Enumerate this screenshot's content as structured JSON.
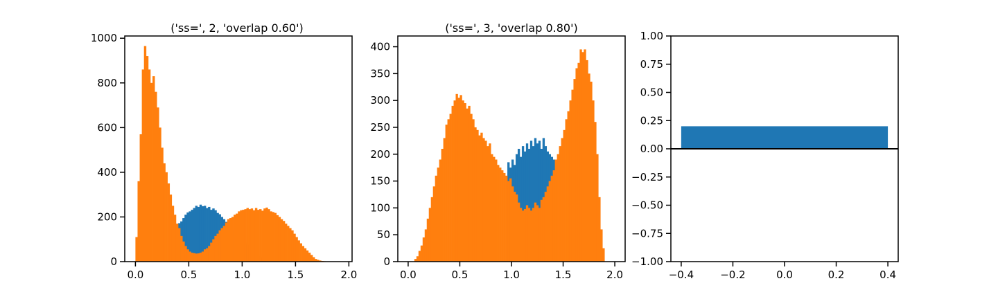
{
  "colors": {
    "blue": "#1f77b4",
    "orange": "#ff7f0e",
    "axis": "#000000",
    "background": "#ffffff"
  },
  "chart_data": [
    {
      "type": "bar",
      "subtype": "overlaid-histogram",
      "title": "('ss=', 2, 'overlap 0.60')",
      "xlim": [
        -0.1,
        2.03
      ],
      "ylim": [
        0,
        1010
      ],
      "xticks": [
        0.0,
        0.5,
        1.0,
        1.5,
        2.0
      ],
      "xtick_labels": [
        "0.0",
        "0.5",
        "1.0",
        "1.5",
        "2.0"
      ],
      "yticks": [
        0,
        200,
        400,
        600,
        800,
        1000
      ],
      "ytick_labels": [
        "0",
        "200",
        "400",
        "600",
        "800",
        "1000"
      ],
      "bin_width": 0.02,
      "grid": false,
      "series": [
        {
          "color_key": "blue",
          "bins": [
            {
              "x0": 0.34,
              "values": [
                125,
                150,
                165,
                172,
                180,
                195,
                210,
                220,
                225,
                232,
                240,
                250,
                245,
                255,
                248,
                250,
                240,
                245,
                232,
                238,
                230,
                218,
                212,
                200,
                190,
                178,
                168,
                155,
                145,
                135,
                125,
                115,
                105,
                95,
                85,
                75,
                65,
                55,
                45,
                35,
                25,
                18
              ]
            }
          ]
        },
        {
          "color_key": "orange",
          "bins": [
            {
              "x0": 0.0,
              "values": [
                110,
                360,
                570,
                860,
                965,
                920,
                860,
                800,
                830,
                760,
                690,
                600,
                510,
                440,
                400,
                350,
                300,
                250,
                210,
                170,
                150,
                115,
                90,
                70,
                55,
                45,
                40,
                38,
                36,
                37,
                40,
                45,
                55,
                60,
                70,
                85,
                100,
                115,
                125,
                140,
                150,
                160,
                175,
                190,
                195,
                200,
                210,
                215,
                225,
                230,
                232,
                235,
                240,
                235,
                238,
                230,
                240,
                232,
                235,
                228,
                238,
                242,
                235,
                225,
                222,
                218,
                208,
                200,
                190,
                182,
                170,
                160,
                150,
                140,
                125,
                110,
                95,
                82,
                70,
                60,
                50,
                40,
                30,
                20,
                12,
                8,
                5,
                3,
                2,
                1,
                1,
                1
              ]
            }
          ]
        }
      ]
    },
    {
      "type": "bar",
      "subtype": "overlaid-histogram",
      "title": "('ss=', 3, 'overlap 0.80')",
      "xlim": [
        -0.1,
        2.1
      ],
      "ylim": [
        0,
        420
      ],
      "xticks": [
        0.0,
        0.5,
        1.0,
        1.5,
        2.0
      ],
      "xtick_labels": [
        "0.0",
        "0.5",
        "1.0",
        "1.5",
        "2.0"
      ],
      "yticks": [
        0,
        50,
        100,
        150,
        200,
        250,
        300,
        350,
        400
      ],
      "ytick_labels": [
        "0",
        "50",
        "100",
        "150",
        "200",
        "250",
        "300",
        "350",
        "400"
      ],
      "bin_width": 0.02,
      "grid": false,
      "series": [
        {
          "color_key": "blue",
          "bins": [
            {
              "x0": 0.96,
              "values": [
                185,
                175,
                190,
                180,
                200,
                210,
                195,
                215,
                205,
                220,
                210,
                225,
                215,
                230,
                220,
                225,
                210,
                230,
                215,
                205,
                200,
                195,
                190,
                185
              ]
            }
          ]
        },
        {
          "color_key": "orange",
          "bins": [
            {
              "x0": 0.06,
              "values": [
                5,
                10,
                20,
                30,
                45,
                60,
                80,
                100,
                120,
                140,
                160,
                175,
                190,
                210,
                230,
                255,
                265,
                275,
                290,
                300,
                312,
                305,
                310,
                300,
                295,
                285,
                290,
                275,
                265,
                250,
                245,
                235,
                240,
                230,
                225,
                215,
                220,
                200,
                195,
                190,
                180,
                175,
                170,
                165,
                160,
                150,
                155,
                140,
                130,
                125,
                110,
                100,
                95,
                98,
                105,
                100,
                95,
                100,
                110,
                105,
                100,
                115,
                120,
                130,
                140,
                150,
                160,
                170,
                190,
                200,
                215,
                230,
                245,
                265,
                280,
                300,
                320,
                340,
                360,
                370,
                395,
                390,
                395,
                375,
                350,
                335,
                300,
                260,
                200,
                120,
                60,
                25
              ]
            }
          ]
        }
      ]
    },
    {
      "type": "bar",
      "title": "",
      "xlim": [
        -0.44,
        0.44
      ],
      "ylim": [
        -1.0,
        1.0
      ],
      "xticks": [
        -0.4,
        -0.2,
        0.0,
        0.2,
        0.4
      ],
      "xtick_labels": [
        "−0.4",
        "−0.2",
        "0.0",
        "0.2",
        "0.4"
      ],
      "yticks": [
        -1.0,
        -0.75,
        -0.5,
        -0.25,
        0.0,
        0.25,
        0.5,
        0.75,
        1.0
      ],
      "ytick_labels": [
        "−1.00",
        "−0.75",
        "−0.50",
        "−0.25",
        "0.00",
        "0.25",
        "0.50",
        "0.75",
        "1.00"
      ],
      "categories": [
        0
      ],
      "values": [
        0.2
      ],
      "bar_width": 0.8,
      "baseline": 0,
      "grid": false
    }
  ]
}
